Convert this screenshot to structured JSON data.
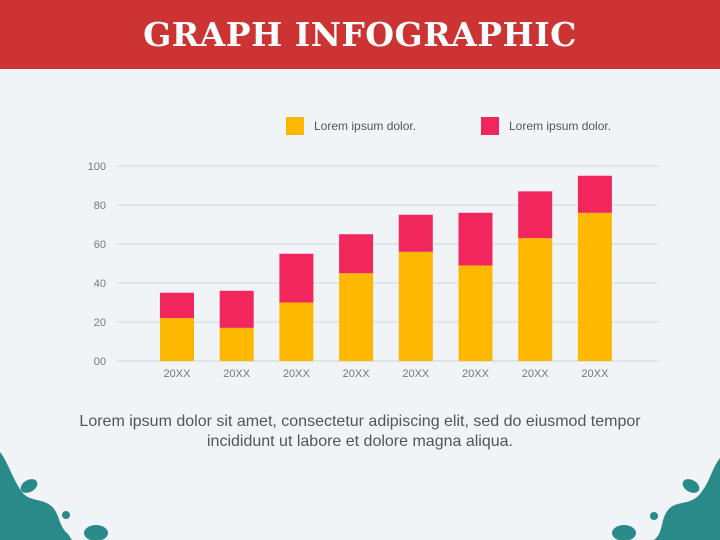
{
  "header": {
    "title": "GRAPH INFOGRAPHIC"
  },
  "legend": [
    {
      "label": "Lorem ipsum dolor.",
      "color": "#ffb800"
    },
    {
      "label": "Lorem ipsum dolor.",
      "color": "#f0265c"
    }
  ],
  "chart_data": {
    "type": "bar",
    "stacked": true,
    "categories": [
      "20XX",
      "20XX",
      "20XX",
      "20XX",
      "20XX",
      "20XX",
      "20XX",
      "20XX"
    ],
    "series": [
      {
        "name": "Lorem ipsum dolor.",
        "color": "#ffb800",
        "values": [
          22,
          17,
          30,
          45,
          56,
          49,
          63,
          76
        ]
      },
      {
        "name": "Lorem ipsum dolor.",
        "color": "#f0265c",
        "values": [
          13,
          19,
          25,
          20,
          19,
          27,
          24,
          19
        ]
      }
    ],
    "yticks": [
      "00",
      "20",
      "40",
      "60",
      "80",
      "100"
    ],
    "ylim": [
      0,
      100
    ],
    "grid": true,
    "legend_position": "top-right"
  },
  "caption": "Lorem ipsum dolor sit amet, consectetur adipiscing elit, sed do eiusmod tempor incididunt ut labore et dolore magna aliqua.",
  "decoration": {
    "color": "#2a8a8a"
  }
}
